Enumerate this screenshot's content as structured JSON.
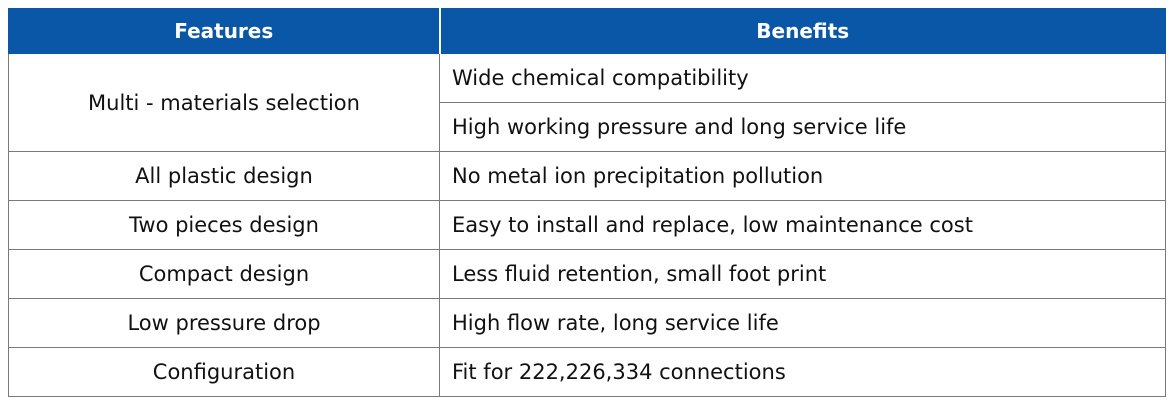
{
  "table": {
    "headers": {
      "features": "Features",
      "benefits": "Benefits"
    },
    "rows": [
      {
        "feature": "Multi - materials selection",
        "benefits": [
          "Wide chemical compatibility",
          "High working pressure and long service life"
        ]
      },
      {
        "feature": "All plastic design",
        "benefits": [
          "No metal ion precipitation pollution"
        ]
      },
      {
        "feature": "Two pieces design",
        "benefits": [
          "Easy to install and replace, low maintenance cost"
        ]
      },
      {
        "feature": "Compact design",
        "benefits": [
          "Less fluid retention, small foot print"
        ]
      },
      {
        "feature": "Low pressure drop",
        "benefits": [
          "High flow rate, long service life"
        ]
      },
      {
        "feature": "Configuration",
        "benefits": [
          "Fit for 222,226,334 connections"
        ]
      }
    ]
  },
  "colors": {
    "header_bg": "#0b57a7",
    "header_text": "#ffffff",
    "border": "#7a7a7a",
    "text": "#111111"
  }
}
